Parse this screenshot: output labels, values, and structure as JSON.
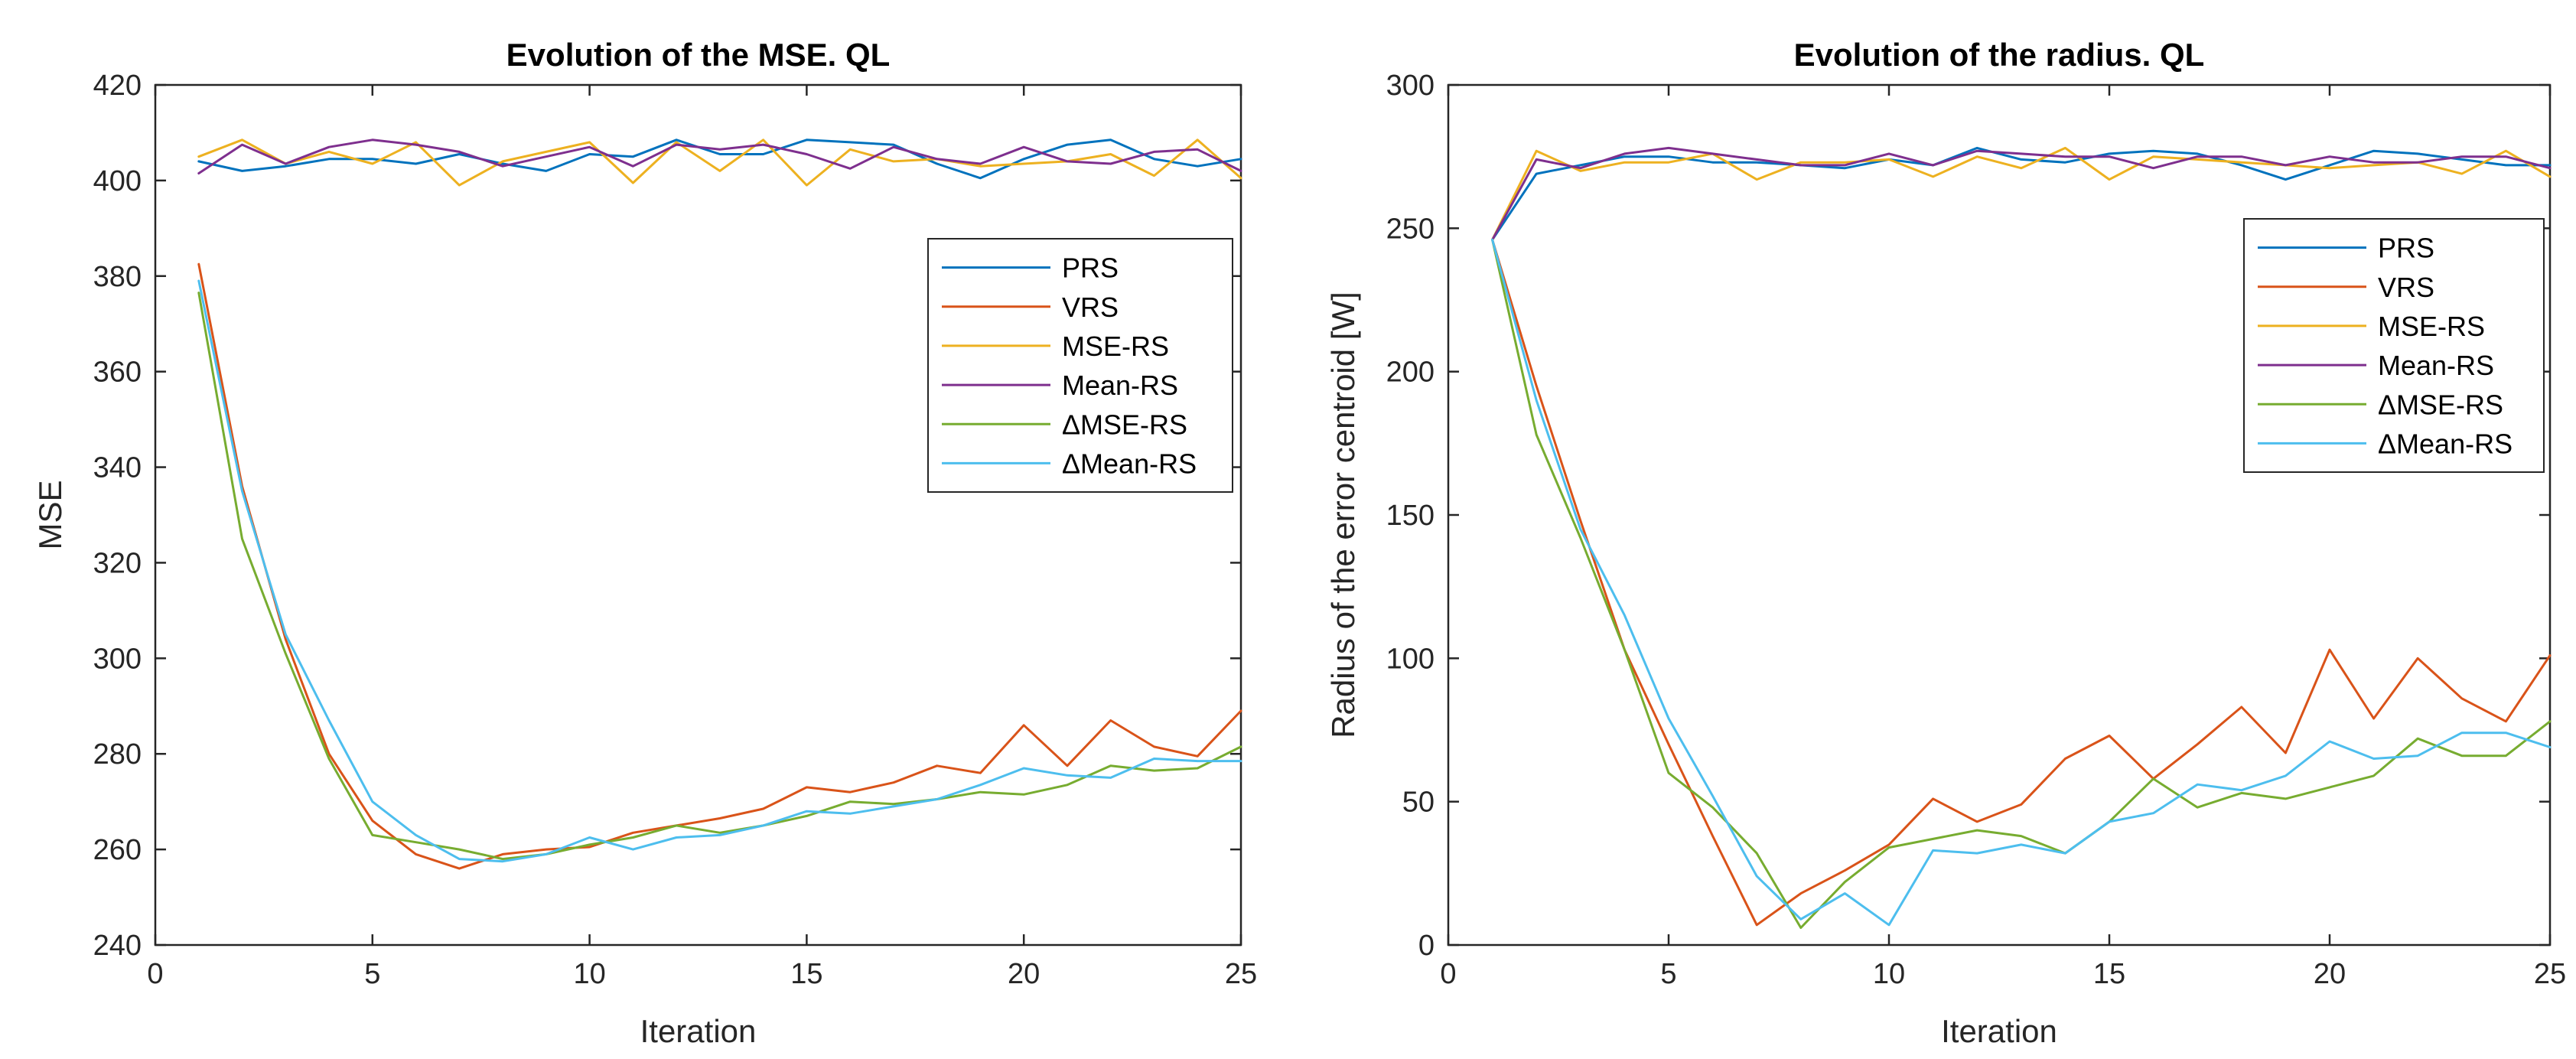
{
  "chart_data": [
    {
      "type": "line",
      "title": "Evolution of the MSE. QL",
      "xlabel": "Iteration",
      "ylabel": "MSE",
      "xlim": [
        0,
        25
      ],
      "ylim": [
        240,
        420
      ],
      "xticks": [
        0,
        5,
        10,
        15,
        20,
        25
      ],
      "yticks": [
        240,
        260,
        280,
        300,
        320,
        340,
        360,
        380,
        400,
        420
      ],
      "grid": false,
      "legend_position": "right",
      "x": [
        1,
        2,
        3,
        4,
        5,
        6,
        7,
        8,
        9,
        10,
        11,
        12,
        13,
        14,
        15,
        16,
        17,
        18,
        19,
        20,
        21,
        22,
        23,
        24,
        25
      ],
      "series": [
        {
          "name": "PRS",
          "color": "#0072BD",
          "values": [
            404,
            402,
            403,
            404.5,
            404.5,
            403.5,
            405.5,
            403.5,
            402,
            405.5,
            405,
            408.5,
            405.5,
            405.5,
            408.5,
            408,
            407.5,
            403.5,
            400.5,
            404.5,
            407.5,
            408.5,
            404.5,
            403,
            404.5
          ]
        },
        {
          "name": "VRS",
          "color": "#D95319",
          "values": [
            382.5,
            336,
            304,
            280,
            266,
            259,
            256,
            259,
            260,
            260.5,
            263.5,
            265,
            266.5,
            268.5,
            273,
            272,
            274,
            277.5,
            276,
            286,
            277.5,
            287,
            281.5,
            279.5,
            289
          ]
        },
        {
          "name": "MSE-RS",
          "color": "#EDB120",
          "values": [
            405,
            408.5,
            403.5,
            406,
            403.5,
            408,
            399,
            404,
            406,
            408,
            399.5,
            408,
            402,
            408.5,
            399,
            406.5,
            404,
            404.5,
            403,
            403.5,
            404,
            405.5,
            401,
            408.5,
            400.5
          ]
        },
        {
          "name": "Mean-RS",
          "color": "#7E2F8E",
          "values": [
            401.5,
            407.5,
            403.5,
            407,
            408.5,
            407.5,
            406,
            403,
            405,
            407,
            403,
            407.5,
            406.5,
            407.5,
            405.5,
            402.5,
            407,
            404.5,
            403.5,
            407,
            404,
            403.5,
            406,
            406.5,
            402
          ]
        },
        {
          "name": "ΔMSE-RS",
          "color": "#77AC30",
          "values": [
            376.5,
            325,
            301,
            279,
            263,
            261.5,
            260,
            258,
            259,
            261,
            262.5,
            265,
            263.5,
            265,
            267,
            270,
            269.5,
            270.5,
            272,
            271.5,
            273.5,
            277.5,
            276.5,
            277,
            281.5
          ]
        },
        {
          "name": "ΔMean-RS",
          "color": "#4DBEEE",
          "values": [
            379,
            335,
            305,
            287,
            270,
            263,
            258,
            257.5,
            259,
            262.5,
            260,
            262.5,
            263,
            265,
            268,
            267.5,
            269,
            270.5,
            273.5,
            277,
            275.5,
            275,
            279,
            278.5,
            278.5
          ]
        }
      ]
    },
    {
      "type": "line",
      "title": "Evolution of the radius. QL",
      "xlabel": "Iteration",
      "ylabel": "Radius of the error centroid [W]",
      "xlim": [
        0,
        25
      ],
      "ylim": [
        0,
        300
      ],
      "xticks": [
        0,
        5,
        10,
        15,
        20,
        25
      ],
      "yticks": [
        0,
        50,
        100,
        150,
        200,
        250,
        300
      ],
      "grid": false,
      "legend_position": "top-right",
      "x": [
        1,
        2,
        3,
        4,
        5,
        6,
        7,
        8,
        9,
        10,
        11,
        12,
        13,
        14,
        15,
        16,
        17,
        18,
        19,
        20,
        21,
        22,
        23,
        24,
        25
      ],
      "series": [
        {
          "name": "PRS",
          "color": "#0072BD",
          "values": [
            246,
            269,
            272,
            275,
            275,
            273,
            273,
            272,
            271,
            274,
            272,
            278,
            274,
            273,
            276,
            277,
            276,
            272,
            267,
            272,
            277,
            276,
            274,
            272,
            272
          ]
        },
        {
          "name": "VRS",
          "color": "#D95319",
          "values": [
            246,
            195,
            148,
            103,
            70,
            38,
            7,
            18,
            26,
            35,
            51,
            43,
            49,
            65,
            73,
            58,
            70,
            83,
            67,
            103,
            79,
            100,
            86,
            78,
            101
          ]
        },
        {
          "name": "MSE-RS",
          "color": "#EDB120",
          "values": [
            246,
            277,
            270,
            273,
            273,
            276,
            267,
            273,
            273,
            274,
            268,
            275,
            271,
            278,
            267,
            275,
            274,
            273,
            272,
            271,
            272,
            273,
            269,
            277,
            268
          ]
        },
        {
          "name": "Mean-RS",
          "color": "#7E2F8E",
          "values": [
            246,
            274,
            271,
            276,
            278,
            276,
            274,
            272,
            272,
            276,
            272,
            277,
            276,
            275,
            275,
            271,
            275,
            275,
            272,
            275,
            273,
            273,
            275,
            275,
            271
          ]
        },
        {
          "name": "ΔMSE-RS",
          "color": "#77AC30",
          "values": [
            246,
            178,
            142,
            103,
            60,
            48,
            32,
            6,
            22,
            34,
            37,
            40,
            38,
            32,
            43,
            58,
            48,
            53,
            51,
            55,
            59,
            72,
            66,
            66,
            78
          ]
        },
        {
          "name": "ΔMean-RS",
          "color": "#4DBEEE",
          "values": [
            246,
            190,
            145,
            115,
            79,
            52,
            24,
            9,
            18,
            7,
            33,
            32,
            35,
            32,
            43,
            46,
            56,
            54,
            59,
            71,
            65,
            66,
            74,
            74,
            69
          ]
        }
      ]
    }
  ]
}
